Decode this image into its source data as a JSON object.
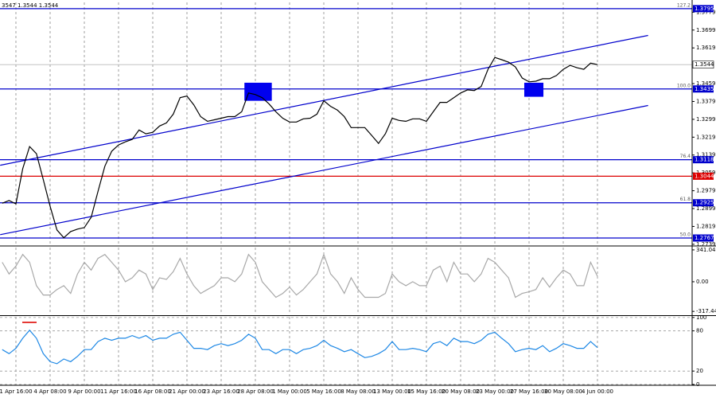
{
  "chart_data": [
    {
      "type": "line",
      "title": "3547 1.3544 1.3544",
      "color": "#000000",
      "grid": "x",
      "xlim": [
        0,
        101
      ],
      "xticks": [
        {
          "value": 2,
          "label": "1 Apr 16:00"
        },
        {
          "value": 7,
          "label": "4 Apr 08:00"
        },
        {
          "value": 12,
          "label": "9 Apr 00:00"
        },
        {
          "value": 17,
          "label": "11 Apr 16:00"
        },
        {
          "value": 22,
          "label": "16 Apr 08:00"
        },
        {
          "value": 27,
          "label": "21 Apr 00:00"
        },
        {
          "value": 32,
          "label": "23 Apr 16:00"
        },
        {
          "value": 37,
          "label": "28 Apr 08:00"
        },
        {
          "value": 42,
          "label": "1 May 00:00"
        },
        {
          "value": 47,
          "label": "5 May 16:00"
        },
        {
          "value": 52,
          "label": "8 May 08:00"
        },
        {
          "value": 57,
          "label": "13 May 00:00"
        },
        {
          "value": 62,
          "label": "15 May 16:00"
        },
        {
          "value": 67,
          "label": "20 May 08:00"
        },
        {
          "value": 72,
          "label": "23 May 00:00"
        },
        {
          "value": 77,
          "label": "27 May 16:00"
        },
        {
          "value": 82,
          "label": "30 May 08:00"
        },
        {
          "value": 87,
          "label": "4 Jun 00:00"
        }
      ],
      "ylim": [
        1.2735,
        1.3823
      ],
      "yticks": [
        1.3779,
        1.3699,
        1.3619,
        1.3459,
        1.3379,
        1.3299,
        1.3219,
        1.3139,
        1.3059,
        1.2979,
        1.2899,
        1.2819,
        1.2739
      ],
      "values": [
        1.2923,
        1.2935,
        1.292,
        1.3078,
        1.3177,
        1.3145,
        1.3029,
        1.2909,
        1.2803,
        1.2768,
        1.2796,
        1.2807,
        1.2814,
        1.286,
        1.2976,
        1.3089,
        1.3156,
        1.3184,
        1.3198,
        1.3209,
        1.3251,
        1.3234,
        1.3241,
        1.3269,
        1.3283,
        1.3322,
        1.3396,
        1.3403,
        1.3364,
        1.3311,
        1.329,
        1.3297,
        1.3304,
        1.3311,
        1.3311,
        1.3333,
        1.3417,
        1.341,
        1.3396,
        1.3368,
        1.3333,
        1.3304,
        1.3287,
        1.3287,
        1.3301,
        1.3304,
        1.3322,
        1.3382,
        1.3357,
        1.334,
        1.3311,
        1.3262,
        1.3262,
        1.3262,
        1.3227,
        1.3191,
        1.3234,
        1.3304,
        1.3294,
        1.329,
        1.3301,
        1.3301,
        1.329,
        1.3333,
        1.3375,
        1.3375,
        1.3396,
        1.3417,
        1.3431,
        1.3428,
        1.3446,
        1.3523,
        1.3576,
        1.3566,
        1.3555,
        1.3534,
        1.3484,
        1.3467,
        1.347,
        1.3481,
        1.3481,
        1.3495,
        1.3523,
        1.3541,
        1.353,
        1.3523,
        1.3551,
        1.3544
      ],
      "levels": [
        {
          "label": "127.2",
          "value": 1.3795,
          "color": "#0000cc"
        },
        {
          "label": "100.0",
          "value": 1.3435,
          "color": "#0000cc"
        },
        {
          "label": "76.4",
          "value": 1.3118,
          "color": "#0000cc"
        },
        {
          "value": 1.3044,
          "color": "#dd0000"
        },
        {
          "label": "61.8",
          "value": 1.2925,
          "color": "#0000cc"
        },
        {
          "label": "50.0",
          "value": 1.2767,
          "color": "#0000cc"
        }
      ],
      "current_price": 1.3544,
      "trendlines": [
        {
          "x": [
            -0.3,
            94.4
          ],
          "values": [
            1.3093,
            1.3675
          ],
          "color": "#0000cc"
        },
        {
          "x": [
            -0.3,
            94.4
          ],
          "values": [
            1.2782,
            1.3361
          ],
          "color": "#0000cc"
        }
      ],
      "zones": [
        {
          "x": [
            35.4,
            39.4
          ],
          "values": [
            1.3382,
            1.3463
          ],
          "color": "#0000ee"
        },
        {
          "x": [
            76.3,
            79.1
          ],
          "values": [
            1.34,
            1.3463
          ],
          "color": "#0000ee"
        }
      ]
    },
    {
      "type": "line",
      "color": "#a8a8a8",
      "grid": "x",
      "ylim": [
        -350,
        366
      ],
      "yticks": [
        341.0423,
        {
          "value": 0,
          "label": "0.00"
        },
        -317.444
      ],
      "values": [
        208,
        83,
        167,
        292,
        208,
        -42,
        -142,
        -142,
        -83,
        -42,
        -125,
        83,
        208,
        125,
        250,
        292,
        208,
        125,
        0,
        42,
        125,
        83,
        -83,
        42,
        25,
        108,
        250,
        83,
        -42,
        -125,
        -83,
        -42,
        42,
        42,
        0,
        83,
        292,
        208,
        0,
        -83,
        -167,
        -125,
        -58,
        -142,
        -83,
        0,
        83,
        292,
        83,
        0,
        -125,
        42,
        -83,
        -167,
        -167,
        -167,
        -125,
        83,
        0,
        -42,
        0,
        -42,
        -42,
        125,
        167,
        0,
        208,
        83,
        83,
        0,
        83,
        250,
        208,
        125,
        42,
        -167,
        -125,
        -108,
        -83,
        42,
        -58,
        42,
        125,
        83,
        -42,
        -42,
        208,
        58
      ]
    },
    {
      "type": "line",
      "color": "#1e88e5",
      "grid": "both",
      "ylim": [
        0,
        101
      ],
      "yticks": [
        100,
        80,
        20,
        0
      ],
      "values": [
        52,
        46,
        54,
        69,
        81,
        69,
        46,
        34,
        31,
        38,
        34,
        42,
        52,
        52,
        64,
        69,
        66,
        69,
        69,
        73,
        69,
        73,
        66,
        69,
        69,
        75,
        78,
        66,
        54,
        54,
        52,
        58,
        61,
        58,
        61,
        66,
        75,
        69,
        52,
        52,
        46,
        52,
        52,
        46,
        52,
        54,
        58,
        66,
        58,
        54,
        49,
        52,
        46,
        40,
        42,
        46,
        52,
        64,
        52,
        52,
        54,
        52,
        49,
        61,
        64,
        58,
        69,
        64,
        64,
        61,
        66,
        75,
        78,
        69,
        61,
        49,
        52,
        54,
        52,
        58,
        49,
        54,
        61,
        58,
        54,
        54,
        64,
        55
      ]
    }
  ]
}
